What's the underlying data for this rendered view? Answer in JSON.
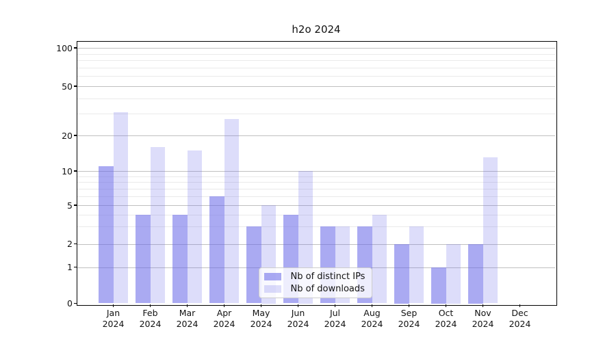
{
  "chart_data": {
    "type": "bar",
    "title": "h2o 2024",
    "categories": [
      "Jan",
      "Feb",
      "Mar",
      "Apr",
      "May",
      "Jun",
      "Jul",
      "Aug",
      "Sep",
      "Oct",
      "Nov",
      "Dec"
    ],
    "category_year": "2024",
    "series": [
      {
        "name": "Nb of distinct IPs",
        "key": "distinct-ips",
        "color": "rgba(100,100,232,0.55)",
        "values": [
          11,
          4,
          4,
          6,
          3,
          4,
          3,
          3,
          2,
          1,
          2,
          0
        ]
      },
      {
        "name": "Nb of downloads",
        "key": "downloads",
        "color": "rgba(100,100,232,0.22)",
        "values": [
          31,
          16,
          15,
          27,
          5,
          10,
          3,
          4,
          3,
          2,
          13,
          0
        ]
      }
    ],
    "yscale": "log-like log(1+x)",
    "ylim": [
      0,
      115
    ],
    "yticks": [
      0,
      1,
      2,
      5,
      10,
      20,
      50,
      100
    ],
    "yticks_minor": [
      3,
      4,
      6,
      7,
      8,
      9,
      30,
      40,
      60,
      70,
      80,
      90
    ],
    "xlabel": "",
    "ylabel": "",
    "grid": true,
    "legend_position": "inside-bottom-center"
  },
  "colors": {
    "grid_major": "#c0c0c0",
    "grid_minor": "#eaeaea",
    "spine": "#000000",
    "text": "#111111",
    "legend_border": "#cccccc",
    "legend_bg": "rgba(255,255,255,0.8)"
  }
}
